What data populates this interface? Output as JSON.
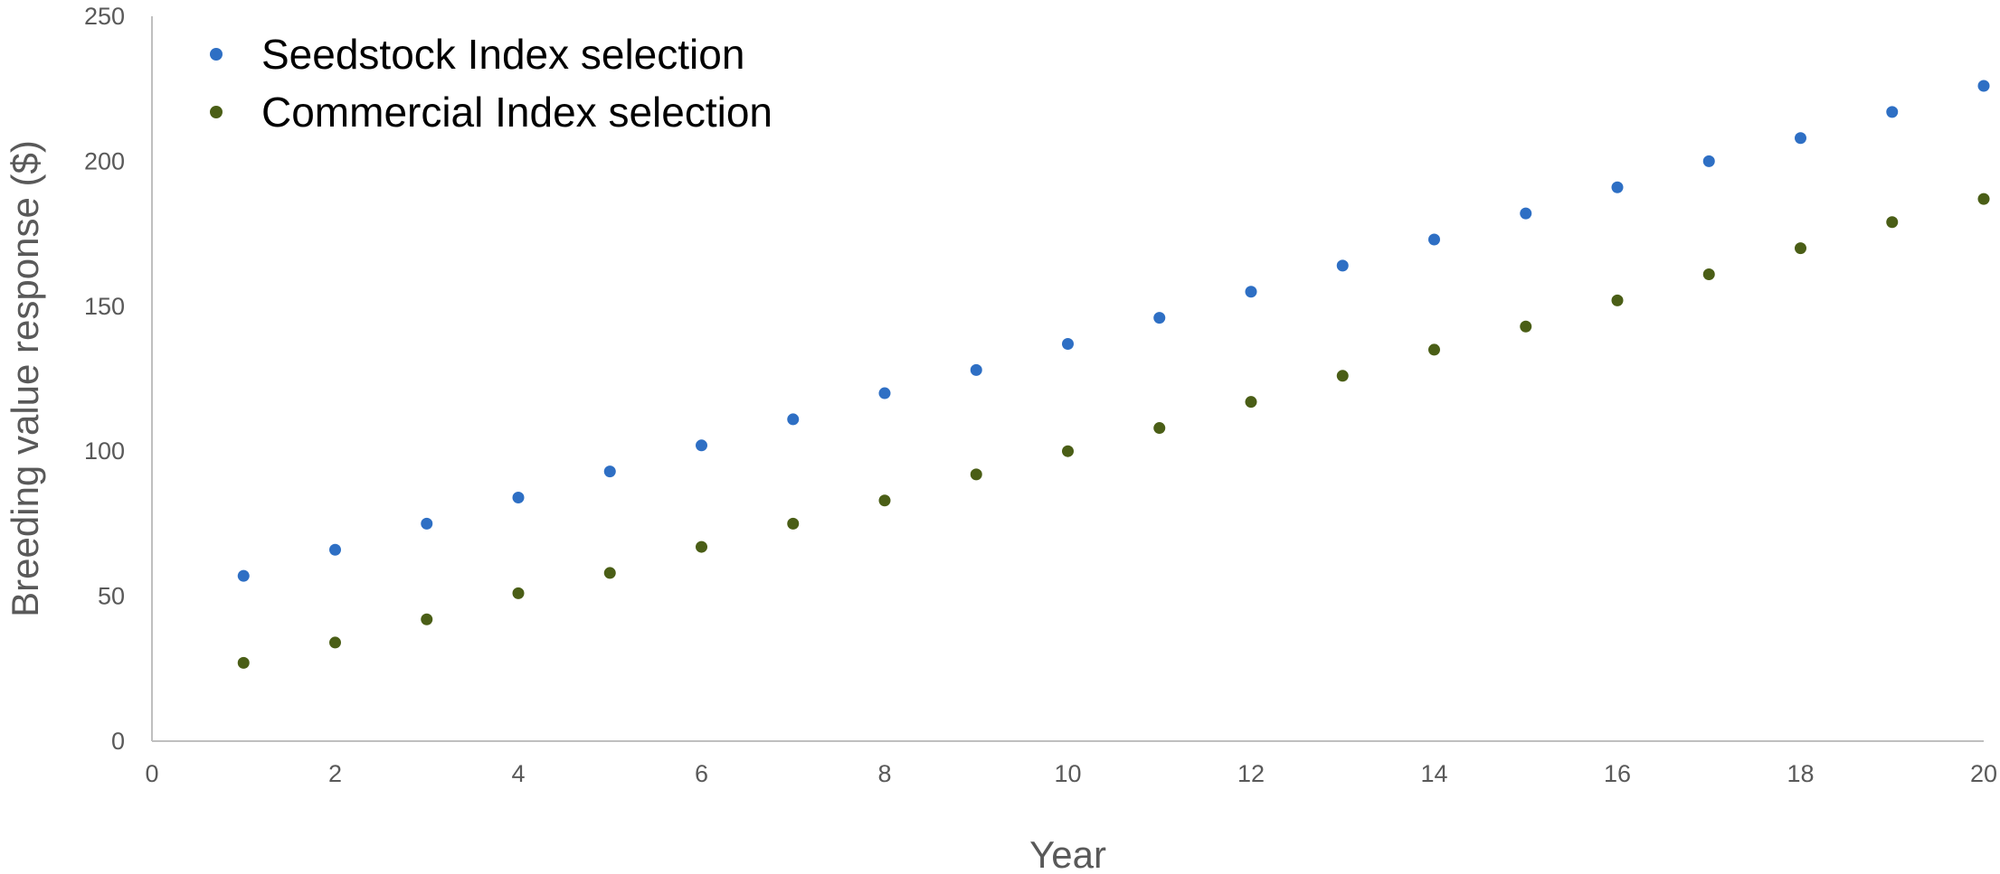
{
  "chart_data": {
    "type": "scatter",
    "title": "",
    "xlabel": "Year",
    "ylabel": "Breeding value response ($)",
    "xlim": [
      0,
      20
    ],
    "ylim": [
      0,
      250
    ],
    "xticks": [
      0,
      2,
      4,
      6,
      8,
      10,
      12,
      14,
      16,
      18,
      20
    ],
    "yticks": [
      0,
      50,
      100,
      150,
      200,
      250
    ],
    "grid": false,
    "legend_position": "top-left",
    "series": [
      {
        "name": "Seedstock Index selection",
        "color": "#2e6fc4",
        "x": [
          1,
          2,
          3,
          4,
          5,
          6,
          7,
          8,
          9,
          10,
          11,
          12,
          13,
          14,
          15,
          16,
          17,
          18,
          19,
          20
        ],
        "y": [
          57,
          66,
          75,
          84,
          93,
          102,
          111,
          120,
          128,
          137,
          146,
          155,
          164,
          173,
          182,
          191,
          200,
          208,
          217,
          226
        ]
      },
      {
        "name": "Commercial Index selection",
        "color": "#4a5e16",
        "x": [
          1,
          2,
          3,
          4,
          5,
          6,
          7,
          8,
          9,
          10,
          11,
          12,
          13,
          14,
          15,
          16,
          17,
          18,
          19,
          20
        ],
        "y": [
          27,
          34,
          42,
          51,
          58,
          67,
          75,
          83,
          92,
          100,
          108,
          117,
          126,
          135,
          143,
          152,
          161,
          170,
          179,
          187
        ]
      }
    ]
  }
}
